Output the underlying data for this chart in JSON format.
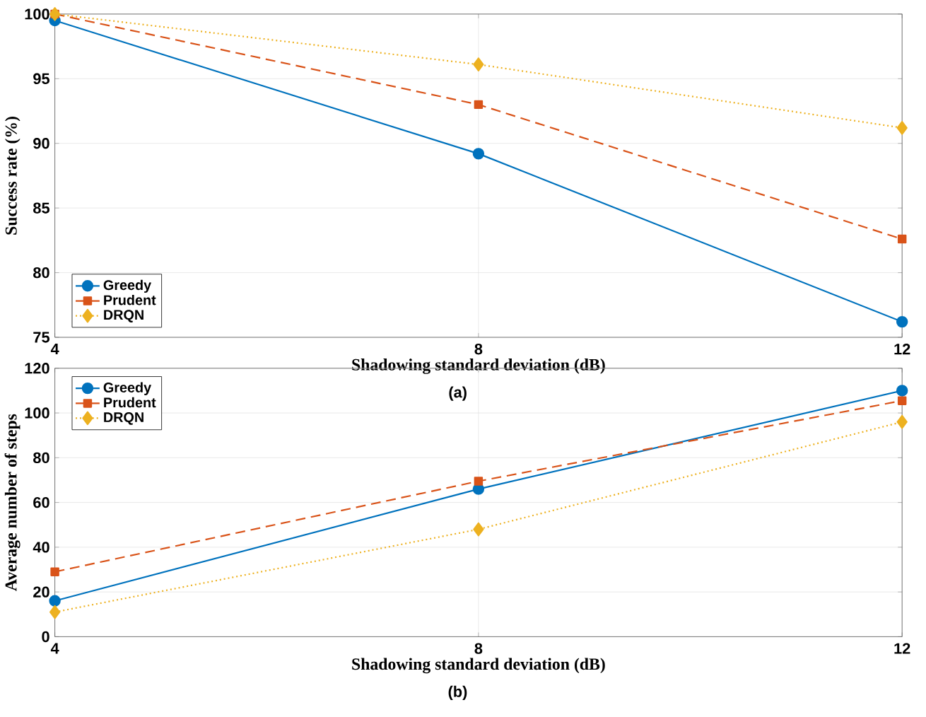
{
  "chart_data": [
    {
      "type": "line",
      "xlabel": "Shadowing standard deviation (dB)",
      "ylabel": "Success rate (%)",
      "annotations": [
        "(a)"
      ],
      "x": [
        4,
        8,
        12
      ],
      "xlim": [
        4,
        12
      ],
      "xticks": [
        4,
        8,
        12
      ],
      "ylim": [
        75,
        100
      ],
      "yticks": [
        75,
        80,
        85,
        90,
        95,
        100
      ],
      "grid": true,
      "legend": "bottom left",
      "series": [
        {
          "name": "Greedy",
          "color": "#0072bd",
          "values": [
            99.5,
            89.2,
            76.2
          ],
          "marker": "circle",
          "line_style": "solid"
        },
        {
          "name": "Prudent",
          "color": "#d95319",
          "values": [
            100,
            93,
            82.6
          ],
          "marker": "square",
          "line_style": "dashed"
        },
        {
          "name": "DRQN",
          "color": "#edb120",
          "values": [
            100,
            96.1,
            91.2
          ],
          "marker": "diamond",
          "line_style": "dotted"
        }
      ]
    },
    {
      "type": "line",
      "xlabel": "Shadowing standard deviation (dB)",
      "ylabel": "Average number of steps",
      "annotations": [
        "(b)"
      ],
      "x": [
        4,
        8,
        12
      ],
      "xlim": [
        4,
        12
      ],
      "xticks": [
        4,
        8,
        12
      ],
      "ylim": [
        0,
        120
      ],
      "yticks": [
        0,
        20,
        40,
        60,
        80,
        100,
        120
      ],
      "grid": true,
      "legend": "top left",
      "series": [
        {
          "name": "Greedy",
          "color": "#0072bd",
          "values": [
            16,
            66,
            110
          ],
          "marker": "circle",
          "line_style": "solid"
        },
        {
          "name": "Prudent",
          "color": "#d95319",
          "values": [
            29,
            69.5,
            105.5
          ],
          "marker": "square",
          "line_style": "dashed"
        },
        {
          "name": "DRQN",
          "color": "#edb120",
          "values": [
            11,
            48,
            96
          ],
          "marker": "diamond",
          "line_style": "dotted"
        }
      ]
    }
  ]
}
